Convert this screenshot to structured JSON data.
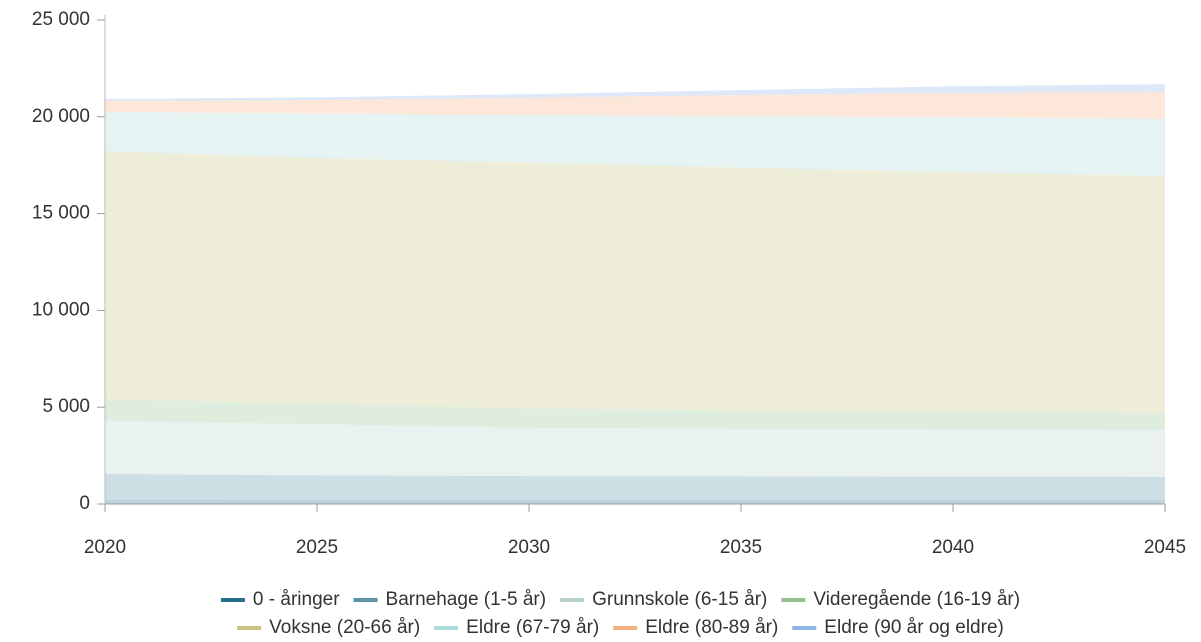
{
  "chart_data": {
    "type": "stacked_area",
    "x": [
      2020,
      2025,
      2030,
      2035,
      2040,
      2045
    ],
    "xlim": [
      2020,
      2045
    ],
    "xticks": [
      2020,
      2025,
      2030,
      2035,
      2040,
      2045
    ],
    "ylim": [
      0,
      25000
    ],
    "yticks": [
      {
        "value": 0,
        "label": "0"
      },
      {
        "value": 5000,
        "label": "5 000"
      },
      {
        "value": 10000,
        "label": "10 000"
      },
      {
        "value": 15000,
        "label": "15 000"
      },
      {
        "value": 20000,
        "label": "20 000"
      },
      {
        "value": 25000,
        "label": "25 000"
      }
    ],
    "legend": "bottom",
    "series": [
      {
        "name": "0 - åringer",
        "color": "#2a6f8a",
        "values": [
          230,
          220,
          210,
          210,
          205,
          200
        ]
      },
      {
        "name": "Barnehage (1-5 år)",
        "color": "#5b95a8",
        "values": [
          1320,
          1250,
          1230,
          1220,
          1210,
          1200
        ]
      },
      {
        "name": "Grunnskole (6-15 år)",
        "color": "#b8cfd0",
        "values": [
          2740,
          2650,
          2500,
          2450,
          2430,
          2420
        ]
      },
      {
        "name": "Videregående (16-19 år)",
        "color": "#93c293",
        "values": [
          1130,
          1050,
          1000,
          950,
          900,
          880
        ]
      },
      {
        "name": "Voksne (20-66 år)",
        "color": "#c8c480",
        "values": [
          12810,
          12700,
          12700,
          12550,
          12400,
          12240
        ]
      },
      {
        "name": "Eldre (67-79 år)",
        "color": "#a8dcd8",
        "values": [
          2020,
          2300,
          2450,
          2650,
          2850,
          2950
        ]
      },
      {
        "name": "Eldre (80-89 år)",
        "color": "#f4b183",
        "values": [
          570,
          700,
          900,
          1100,
          1250,
          1390
        ]
      },
      {
        "name": "Eldre (90 år og eldre)",
        "color": "#8fb4e8",
        "values": [
          100,
          130,
          180,
          250,
          330,
          410
        ]
      }
    ]
  }
}
